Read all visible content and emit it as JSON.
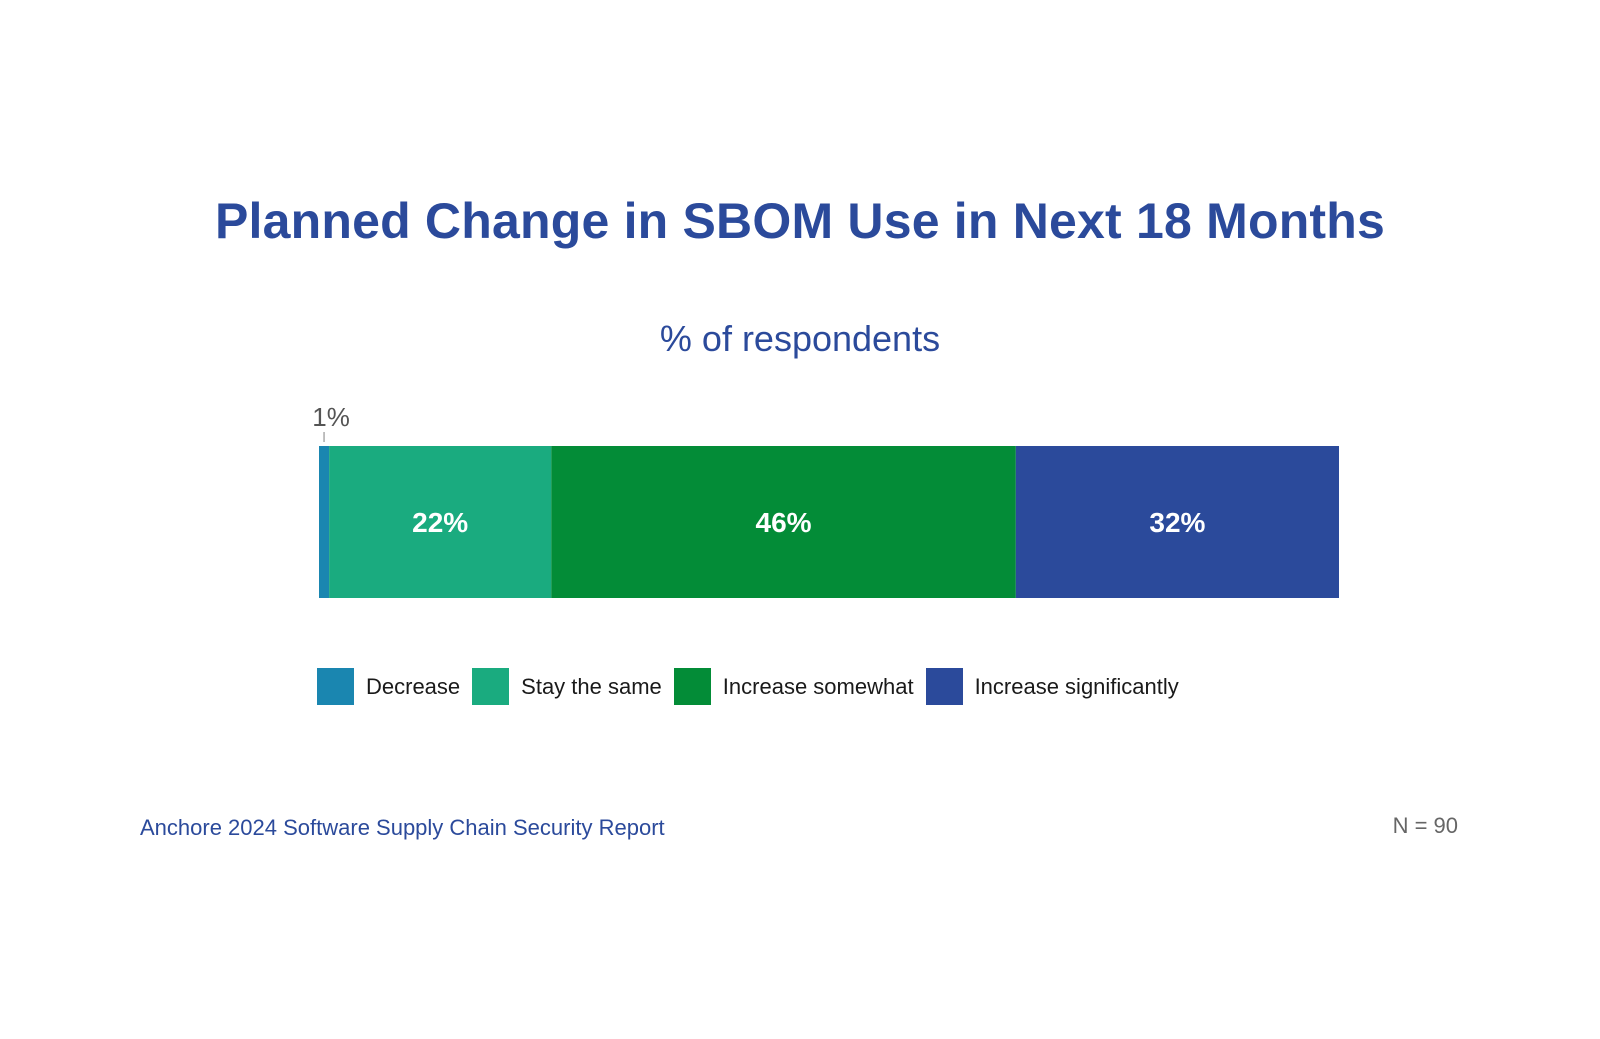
{
  "chart_data": {
    "type": "bar",
    "orientation": "horizontal-stacked",
    "title": "Planned Change in SBOM Use in Next 18 Months",
    "subtitle": "% of respondents",
    "categories": [
      ""
    ],
    "series": [
      {
        "name": "Decrease",
        "values": [
          1
        ],
        "label": "1%",
        "color": "#1a86b0"
      },
      {
        "name": "Stay the same",
        "values": [
          22
        ],
        "label": "22%",
        "color": "#1aab7f"
      },
      {
        "name": "Increase somewhat",
        "values": [
          46
        ],
        "label": "46%",
        "color": "#038c37"
      },
      {
        "name": "Increase significantly",
        "values": [
          32
        ],
        "label": "32%",
        "color": "#2b4a9b"
      }
    ],
    "xlim": [
      0,
      101
    ],
    "grid": false,
    "legend_position": "bottom"
  },
  "footer": {
    "source": "Anchore 2024 Software Supply Chain Security Report",
    "n": "N = 90"
  },
  "colors": {
    "title": "#2b4a9b",
    "bar_label": "#ffffff",
    "outside_label": "#555555"
  }
}
